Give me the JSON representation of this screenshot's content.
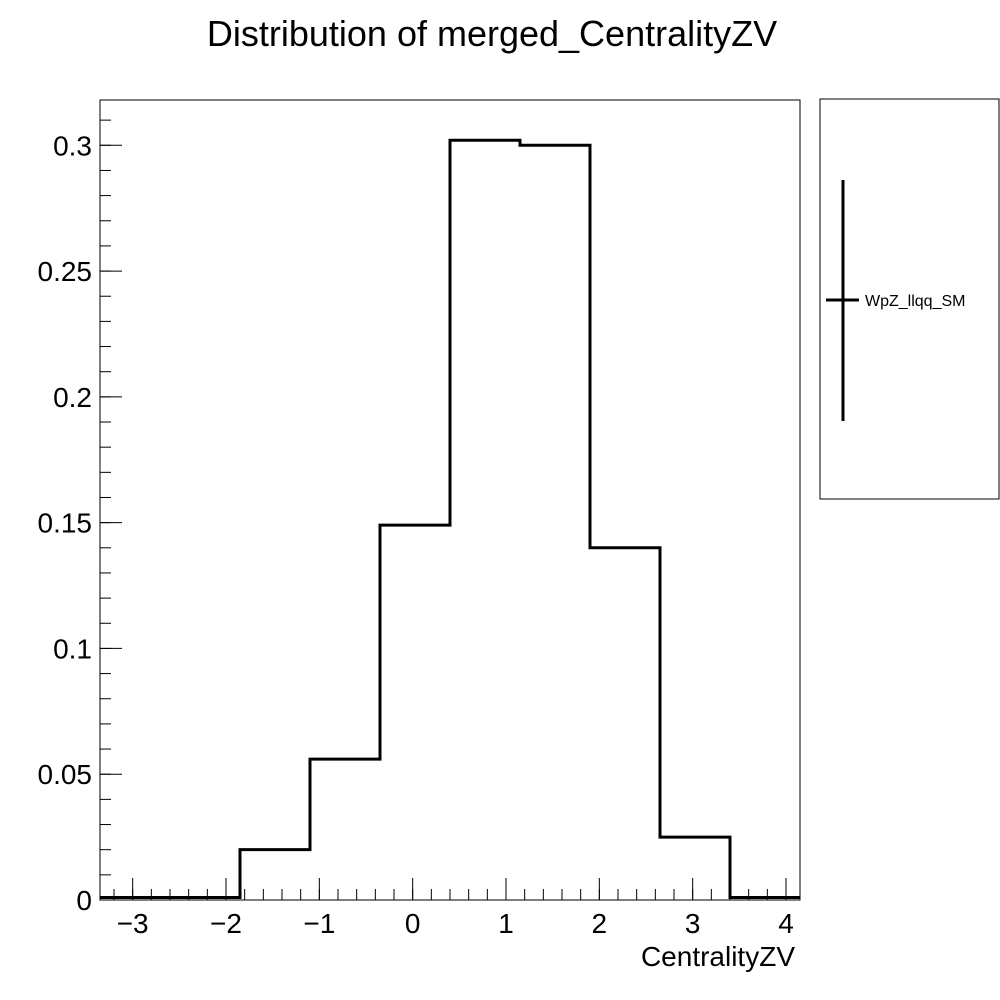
{
  "chart_data": {
    "type": "histogram",
    "title": "Distribution of merged_CentralityZV",
    "xlabel": "CentralityZV",
    "ylabel": "",
    "xlim": [
      -3.35,
      4.15
    ],
    "ylim": [
      0,
      0.318
    ],
    "bin_edges": [
      -3.35,
      -2.6,
      -1.85,
      -1.1,
      -0.35,
      0.4,
      1.15,
      1.9,
      2.65,
      3.4,
      4.15
    ],
    "values": [
      0.001,
      0.001,
      0.02,
      0.056,
      0.149,
      0.302,
      0.3,
      0.14,
      0.025,
      0.001
    ],
    "x_ticks": [
      {
        "value": -3,
        "label": "−3"
      },
      {
        "value": -2,
        "label": "−2"
      },
      {
        "value": -1,
        "label": "−1"
      },
      {
        "value": 0,
        "label": "0"
      },
      {
        "value": 1,
        "label": "1"
      },
      {
        "value": 2,
        "label": "2"
      },
      {
        "value": 3,
        "label": "3"
      },
      {
        "value": 4,
        "label": "4"
      }
    ],
    "y_ticks": [
      {
        "value": 0,
        "label": "0"
      },
      {
        "value": 0.05,
        "label": "0.05"
      },
      {
        "value": 0.1,
        "label": "0.1"
      },
      {
        "value": 0.15,
        "label": "0.15"
      },
      {
        "value": 0.2,
        "label": "0.2"
      },
      {
        "value": 0.25,
        "label": "0.25"
      },
      {
        "value": 0.3,
        "label": "0.3"
      }
    ],
    "x_minor_step": 0.2,
    "y_minor_step": 0.01,
    "series": [
      {
        "name": "WpZ_llqq_SM",
        "color": "#000000"
      }
    ],
    "legend_position": "right",
    "grid": false
  }
}
